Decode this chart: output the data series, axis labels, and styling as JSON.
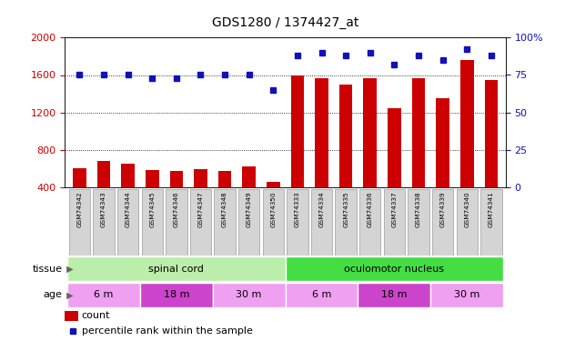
{
  "title": "GDS1280 / 1374427_at",
  "samples": [
    "GSM74342",
    "GSM74343",
    "GSM74344",
    "GSM74345",
    "GSM74346",
    "GSM74347",
    "GSM74348",
    "GSM74349",
    "GSM74350",
    "GSM74333",
    "GSM74334",
    "GSM74335",
    "GSM74336",
    "GSM74337",
    "GSM74338",
    "GSM74339",
    "GSM74340",
    "GSM74341"
  ],
  "counts": [
    610,
    680,
    650,
    590,
    580,
    600,
    580,
    625,
    460,
    1595,
    1570,
    1495,
    1565,
    1250,
    1570,
    1350,
    1760,
    1545
  ],
  "percentiles": [
    75,
    75,
    75,
    73,
    73,
    75,
    75,
    75,
    65,
    88,
    90,
    88,
    90,
    82,
    88,
    85,
    92,
    88
  ],
  "ylim_left": [
    400,
    2000
  ],
  "ylim_right": [
    0,
    100
  ],
  "yticks_left": [
    400,
    800,
    1200,
    1600,
    2000
  ],
  "yticks_right": [
    0,
    25,
    50,
    75,
    100
  ],
  "bar_color": "#cc0000",
  "dot_color": "#1111bb",
  "tissue_groups": [
    {
      "label": "spinal cord",
      "start": 0,
      "end": 9,
      "color": "#bbeeaa"
    },
    {
      "label": "oculomotor nucleus",
      "start": 9,
      "end": 18,
      "color": "#44dd44"
    }
  ],
  "age_groups": [
    {
      "label": "6 m",
      "start": 0,
      "end": 3,
      "color": "#f0a0f0"
    },
    {
      "label": "18 m",
      "start": 3,
      "end": 6,
      "color": "#cc44cc"
    },
    {
      "label": "30 m",
      "start": 6,
      "end": 9,
      "color": "#f0a0f0"
    },
    {
      "label": "6 m",
      "start": 9,
      "end": 12,
      "color": "#f0a0f0"
    },
    {
      "label": "18 m",
      "start": 12,
      "end": 15,
      "color": "#cc44cc"
    },
    {
      "label": "30 m",
      "start": 15,
      "end": 18,
      "color": "#f0a0f0"
    }
  ],
  "legend_count_label": "count",
  "legend_pct_label": "percentile rank within the sample",
  "tissue_label": "tissue",
  "age_label": "age",
  "background_color": "#ffffff"
}
